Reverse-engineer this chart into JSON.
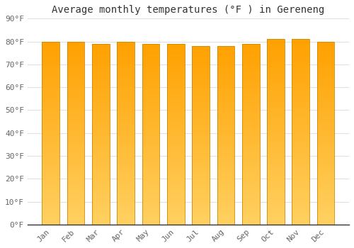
{
  "title": "Average monthly temperatures (°F ) in Gereneng",
  "months": [
    "Jan",
    "Feb",
    "Mar",
    "Apr",
    "May",
    "Jun",
    "Jul",
    "Aug",
    "Sep",
    "Oct",
    "Nov",
    "Dec"
  ],
  "values": [
    80,
    80,
    79,
    80,
    79,
    79,
    78,
    78,
    79,
    81,
    81,
    80
  ],
  "ylim": [
    0,
    90
  ],
  "yticks": [
    0,
    10,
    20,
    30,
    40,
    50,
    60,
    70,
    80,
    90
  ],
  "ytick_labels": [
    "0°F",
    "10°F",
    "20°F",
    "30°F",
    "40°F",
    "50°F",
    "60°F",
    "70°F",
    "80°F",
    "90°F"
  ],
  "bar_color_bottom": "#FFD060",
  "bar_color_top": "#FFA000",
  "bar_edge_color": "#CC8800",
  "background_color": "#FFFFFF",
  "grid_color": "#E0E0E0",
  "title_fontsize": 10,
  "tick_fontsize": 8,
  "font_family": "monospace",
  "bar_width": 0.7
}
